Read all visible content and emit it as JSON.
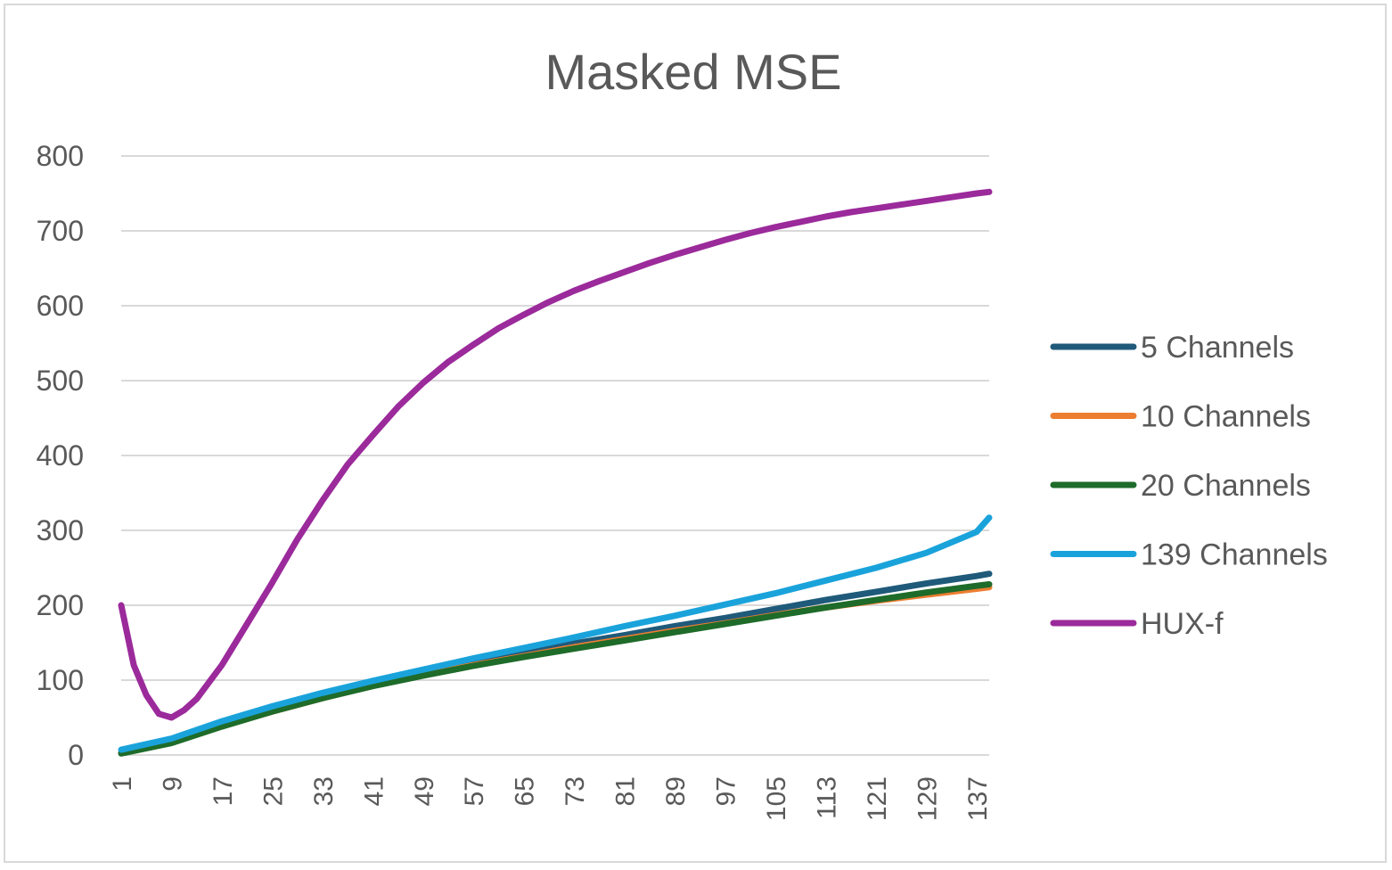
{
  "chart_data": {
    "type": "line",
    "title": "Masked MSE",
    "xlabel": "",
    "ylabel": "",
    "ylim": [
      0,
      800
    ],
    "yticks": [
      0,
      100,
      200,
      300,
      400,
      500,
      600,
      700,
      800
    ],
    "x_tick_labels": [
      "1",
      "9",
      "17",
      "25",
      "33",
      "41",
      "49",
      "57",
      "65",
      "73",
      "81",
      "89",
      "97",
      "105",
      "113",
      "121",
      "129",
      "137"
    ],
    "x_range": [
      1,
      139
    ],
    "grid": "horizontal",
    "legend_position": "right",
    "series": [
      {
        "name": "5 Channels",
        "color": "#1f5a7a",
        "x": [
          1,
          9,
          17,
          25,
          33,
          41,
          49,
          57,
          65,
          73,
          81,
          89,
          97,
          105,
          113,
          121,
          129,
          137,
          139
        ],
        "values": [
          3,
          18,
          40,
          60,
          78,
          95,
          110,
          123,
          136,
          149,
          160,
          172,
          183,
          195,
          207,
          218,
          229,
          239,
          242
        ]
      },
      {
        "name": "10 Channels",
        "color": "#ed7d31",
        "x": [
          1,
          9,
          17,
          25,
          33,
          41,
          49,
          57,
          65,
          73,
          81,
          89,
          97,
          105,
          113,
          121,
          129,
          137,
          139
        ],
        "values": [
          3,
          17,
          39,
          58,
          76,
          93,
          107,
          120,
          132,
          144,
          155,
          166,
          176,
          187,
          197,
          206,
          214,
          222,
          224
        ]
      },
      {
        "name": "20 Channels",
        "color": "#1e6b2a",
        "x": [
          1,
          9,
          17,
          25,
          33,
          41,
          49,
          57,
          65,
          73,
          81,
          89,
          97,
          105,
          113,
          121,
          129,
          137,
          139
        ],
        "values": [
          2,
          16,
          38,
          58,
          76,
          92,
          106,
          119,
          131,
          142,
          153,
          164,
          175,
          186,
          197,
          207,
          217,
          226,
          228
        ]
      },
      {
        "name": "139 Channels",
        "color": "#1aa3db",
        "x": [
          1,
          9,
          17,
          25,
          33,
          41,
          49,
          57,
          65,
          73,
          81,
          89,
          97,
          105,
          113,
          121,
          129,
          137,
          139
        ],
        "values": [
          7,
          22,
          45,
          65,
          83,
          99,
          114,
          129,
          143,
          157,
          172,
          186,
          201,
          216,
          233,
          250,
          270,
          298,
          317
        ]
      },
      {
        "name": "HUX-f",
        "color": "#9b2a9b",
        "x": [
          1,
          3,
          5,
          7,
          9,
          11,
          13,
          17,
          21,
          25,
          29,
          33,
          37,
          41,
          45,
          49,
          53,
          57,
          61,
          65,
          69,
          73,
          77,
          81,
          85,
          89,
          93,
          97,
          101,
          105,
          109,
          113,
          117,
          121,
          125,
          129,
          133,
          137,
          139
        ],
        "values": [
          200,
          120,
          80,
          55,
          50,
          60,
          75,
          120,
          175,
          230,
          288,
          340,
          388,
          427,
          465,
          497,
          525,
          548,
          570,
          588,
          605,
          620,
          633,
          645,
          657,
          668,
          678,
          688,
          697,
          705,
          712,
          719,
          725,
          730,
          735,
          740,
          745,
          750,
          752
        ]
      }
    ]
  }
}
